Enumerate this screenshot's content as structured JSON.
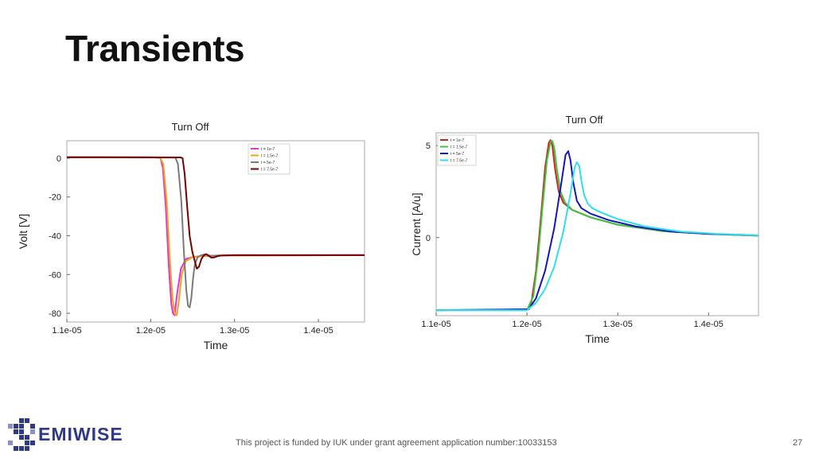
{
  "slide": {
    "title": "Transients",
    "footer": "This project is funded by IUK under grant agreement application number:10033153",
    "page_number": "27",
    "logo_text": "EMIWISE"
  },
  "chart_data": [
    {
      "type": "line",
      "title": "Turn Off",
      "xlabel": "Time",
      "ylabel": "Volt [V]",
      "xlim": [
        1.1e-05,
        1.455e-05
      ],
      "ylim": [
        -84.5,
        9
      ],
      "xticks": [
        1.1e-05,
        1.2e-05,
        1.3e-05,
        1.4e-05
      ],
      "xtick_labels": [
        "1.1e-05",
        "1.2e-05",
        "1.3e-05",
        "1.4e-05"
      ],
      "yticks": [
        0,
        -20,
        -40,
        -60,
        -80
      ],
      "ytick_labels": [
        "0",
        "-20",
        "-40",
        "-60",
        "-80"
      ],
      "grid": false,
      "legend_position": "top-right",
      "series": [
        {
          "name": "t = 1e-7",
          "color": "#e033d8",
          "width": 2,
          "x": [
            1.1e-05,
            1.2e-05,
            1.2115e-05,
            1.2145e-05,
            1.218e-05,
            1.2215e-05,
            1.2245e-05,
            1.2265e-05,
            1.2285e-05,
            1.2315e-05,
            1.236e-05,
            1.242e-05,
            1.25e-05,
            1.26e-05,
            1.28e-05,
            1.455e-05
          ],
          "y": [
            0.5,
            0.5,
            0.2,
            -5,
            -25,
            -55,
            -75,
            -80,
            -81,
            -70,
            -57,
            -52,
            -51,
            -50.5,
            -50.2,
            -50
          ]
        },
        {
          "name": "t = 1.5e-7",
          "color": "#f2a21a",
          "width": 2,
          "x": [
            1.1e-05,
            1.211e-05,
            1.215e-05,
            1.219e-05,
            1.2225e-05,
            1.226e-05,
            1.2285e-05,
            1.231e-05,
            1.2335e-05,
            1.237e-05,
            1.242e-05,
            1.25e-05,
            1.26e-05,
            1.28e-05,
            1.455e-05
          ],
          "y": [
            0.5,
            0.4,
            -3,
            -22,
            -50,
            -72,
            -80,
            -81,
            -74,
            -60,
            -53,
            -51,
            -50.5,
            -50.2,
            -50
          ]
        },
        {
          "name": "t = 5e-7",
          "color": "#7a7a7a",
          "width": 2,
          "x": [
            1.1e-05,
            1.2295e-05,
            1.2325e-05,
            1.2365e-05,
            1.2395e-05,
            1.2425e-05,
            1.2445e-05,
            1.2465e-05,
            1.2485e-05,
            1.2505e-05,
            1.2525e-05,
            1.256e-05,
            1.2605e-05,
            1.2655e-05,
            1.2705e-05,
            1.28e-05,
            1.3e-05,
            1.455e-05
          ],
          "y": [
            0.5,
            0.3,
            -3,
            -22,
            -48,
            -68,
            -76,
            -77,
            -72,
            -62,
            -55,
            -51,
            -50,
            -49.5,
            -50.3,
            -50.2,
            -50,
            -50
          ]
        },
        {
          "name": "t = 7.5e-7",
          "color": "#7a0000",
          "width": 2,
          "x": [
            1.1e-05,
            1.2355e-05,
            1.238e-05,
            1.2405e-05,
            1.2435e-05,
            1.2465e-05,
            1.2495e-05,
            1.2525e-05,
            1.255e-05,
            1.2575e-05,
            1.2605e-05,
            1.2635e-05,
            1.2665e-05,
            1.2695e-05,
            1.2725e-05,
            1.2755e-05,
            1.2785e-05,
            1.2815e-05,
            1.2845e-05,
            1.29e-05,
            1.3e-05,
            1.455e-05
          ],
          "y": [
            0.5,
            0.4,
            0,
            -8,
            -25,
            -40,
            -48,
            -53,
            -57,
            -56,
            -52,
            -50,
            -49.5,
            -50.5,
            -51.3,
            -51.2,
            -50.7,
            -50.4,
            -50.2,
            -50.1,
            -50,
            -50
          ]
        }
      ]
    },
    {
      "type": "line",
      "title": "Turn Off",
      "xlabel": "Time",
      "ylabel": "Current [A/u]",
      "xlim": [
        1.1e-05,
        1.455e-05
      ],
      "ylim": [
        -4.25,
        5.7
      ],
      "xticks": [
        1.1e-05,
        1.2e-05,
        1.3e-05,
        1.4e-05
      ],
      "xtick_labels": [
        "1.1e-05",
        "1.2e-05",
        "1.3e-05",
        "1.4e-05"
      ],
      "yticks": [
        5,
        0
      ],
      "ytick_labels": [
        "5",
        "0"
      ],
      "grid": false,
      "legend_position": "top-left",
      "series": [
        {
          "name": "t = 1e-7",
          "color": "#d42020",
          "width": 2,
          "x": [
            1.1e-05,
            1.2e-05,
            1.205e-05,
            1.21e-05,
            1.215e-05,
            1.22e-05,
            1.224e-05,
            1.226e-05,
            1.228e-05,
            1.231e-05,
            1.235e-05,
            1.24e-05,
            1.25e-05,
            1.27e-05,
            1.3e-05,
            1.35e-05,
            1.4e-05,
            1.455e-05
          ],
          "y": [
            -3.95,
            -3.95,
            -3.5,
            -1.8,
            0.9,
            3.8,
            5.15,
            5.3,
            5.0,
            3.7,
            2.5,
            1.9,
            1.5,
            1.1,
            0.7,
            0.35,
            0.2,
            0.1
          ]
        },
        {
          "name": "t = 1.5e-7",
          "color": "#3cc43c",
          "width": 2,
          "x": [
            1.1e-05,
            1.2e-05,
            1.207e-05,
            1.212e-05,
            1.217e-05,
            1.222e-05,
            1.226e-05,
            1.228e-05,
            1.23e-05,
            1.233e-05,
            1.237e-05,
            1.242e-05,
            1.25e-05,
            1.27e-05,
            1.3e-05,
            1.35e-05,
            1.4e-05,
            1.455e-05
          ],
          "y": [
            -3.95,
            -3.95,
            -3.2,
            -1.2,
            1.6,
            4.2,
            5.2,
            5.25,
            4.9,
            3.7,
            2.5,
            1.9,
            1.5,
            1.1,
            0.7,
            0.35,
            0.2,
            0.1
          ]
        },
        {
          "name": "t = 5e-7",
          "color": "#1616b8",
          "width": 2,
          "x": [
            1.1e-05,
            1.202e-05,
            1.21e-05,
            1.22e-05,
            1.23e-05,
            1.238e-05,
            1.2425e-05,
            1.2455e-05,
            1.248e-05,
            1.251e-05,
            1.255e-05,
            1.26e-05,
            1.27e-05,
            1.29e-05,
            1.32e-05,
            1.36e-05,
            1.4e-05,
            1.455e-05
          ],
          "y": [
            -3.95,
            -3.9,
            -3.3,
            -1.8,
            0.5,
            3.0,
            4.5,
            4.7,
            4.2,
            3.0,
            2.0,
            1.6,
            1.3,
            0.95,
            0.6,
            0.32,
            0.2,
            0.12
          ]
        },
        {
          "name": "t = 7.5e-7",
          "color": "#2ee0ea",
          "width": 2,
          "x": [
            1.1e-05,
            1.2e-05,
            1.21e-05,
            1.22e-05,
            1.23e-05,
            1.24e-05,
            1.248e-05,
            1.2525e-05,
            1.255e-05,
            1.2575e-05,
            1.26e-05,
            1.263e-05,
            1.267e-05,
            1.272e-05,
            1.28e-05,
            1.3e-05,
            1.33e-05,
            1.37e-05,
            1.41e-05,
            1.455e-05
          ],
          "y": [
            -3.95,
            -3.95,
            -3.55,
            -2.8,
            -1.6,
            0.3,
            2.4,
            3.8,
            4.1,
            3.9,
            3.1,
            2.3,
            1.85,
            1.6,
            1.4,
            1.0,
            0.6,
            0.32,
            0.2,
            0.12
          ]
        }
      ]
    }
  ]
}
